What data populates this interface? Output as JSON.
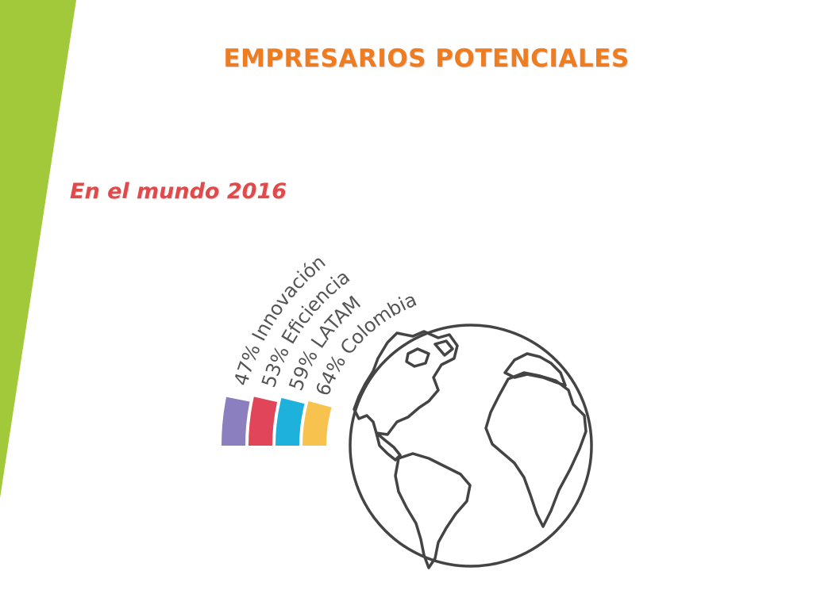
{
  "title": "EMPRESARIOS POTENCIALES",
  "colors": {
    "accent_green": "#a2c93a",
    "title_orange": "#ee7d22",
    "heading_red": "#e04a4a",
    "globe_outline": "#444444"
  },
  "chart_data": {
    "type": "bar",
    "style": "radial-rainbow",
    "title": "En el mundo 2016",
    "categories": [
      "Innovación",
      "Eficiencia",
      "LATAM",
      "Colombia"
    ],
    "values": [
      47,
      53,
      59,
      64
    ],
    "unit": "%",
    "labels": [
      "47% Innovación",
      "53% Eficiencia",
      "59% LATAM",
      "64% Colombia"
    ],
    "colors": [
      "#8c7fbf",
      "#e0455a",
      "#1db1db",
      "#f8c24e"
    ],
    "decoration": "globe-icon"
  }
}
